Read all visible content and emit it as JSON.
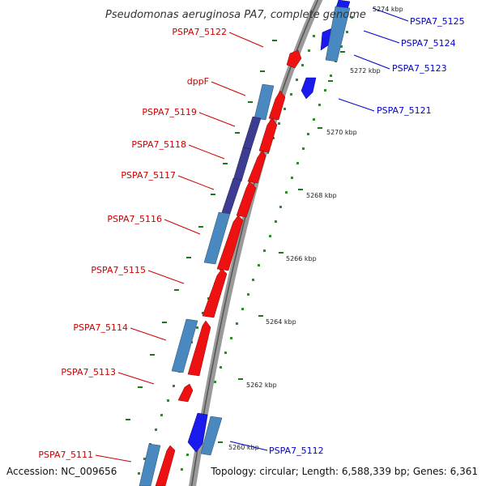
{
  "title": "Pseudomonas aeruginosa PA7, complete genome",
  "footer": {
    "accession": "Accession: NC_009656",
    "topology": "Topology: circular; Length: 6,588,339 bp; Genes: 6,361"
  },
  "colors": {
    "forward_cds": "#ff0000",
    "reverse_cds": "#0000ff",
    "blast_hit": "#4a88c0",
    "blast_hit_dark": "#3a3a8c",
    "gc_dots": "#228b22",
    "backbone": "#999999",
    "label_forward": "#cc0000",
    "label_reverse": "#0000cc"
  },
  "ticks": [
    "5274 kbp",
    "5272 kbp",
    "5270 kbp",
    "5268 kbp",
    "5266 kbp",
    "5264 kbp",
    "5262 kbp",
    "5260 kbp"
  ],
  "forward_labels": [
    "PSPA7_5122",
    "dppF",
    "PSPA7_5119",
    "PSPA7_5118",
    "PSPA7_5117",
    "PSPA7_5116",
    "PSPA7_5115",
    "PSPA7_5114",
    "PSPA7_5113",
    "PSPA7_5111"
  ],
  "reverse_labels": [
    "PSPA7_5125",
    "PSPA7_5124",
    "PSPA7_5123",
    "PSPA7_5121",
    "PSPA7_5112"
  ]
}
